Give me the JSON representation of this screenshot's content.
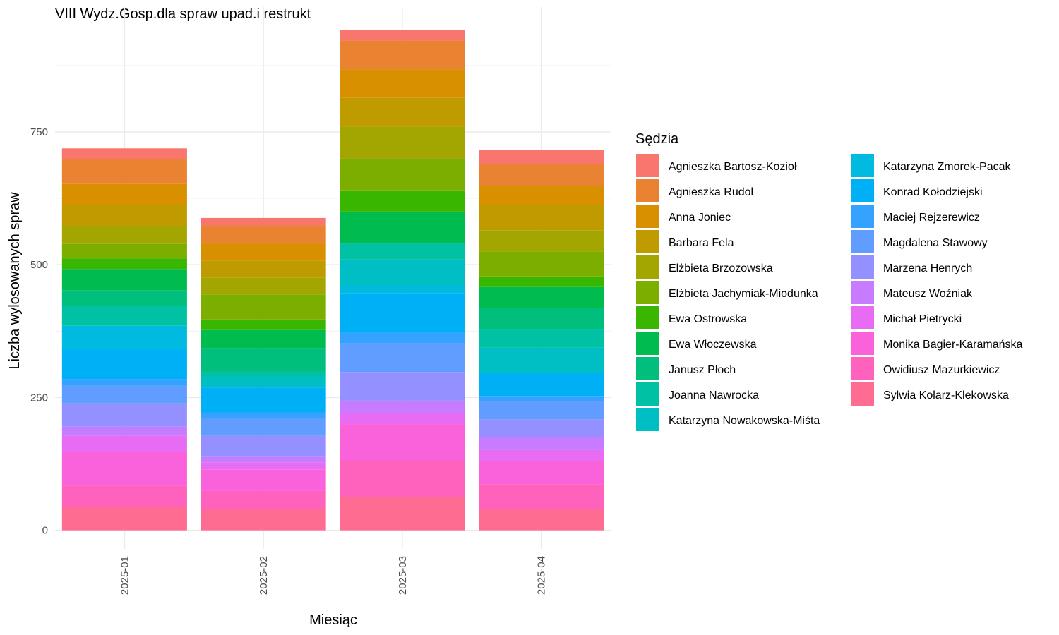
{
  "chart_data": {
    "type": "bar",
    "stacked": true,
    "title": "VIII Wydz.Gosp.dla spraw upad.i restrukt",
    "xlabel": "Miesiąc",
    "ylabel": "Liczba wylosowanych spraw",
    "ylim": [
      -35,
      985
    ],
    "yticks": [
      0,
      250,
      500,
      750
    ],
    "yticks_labels": [
      "0",
      "250",
      "500",
      "750"
    ],
    "grid": true,
    "legend_title": "Sędzia",
    "legend_position": "right",
    "categories": [
      "2025-01",
      "2025-02",
      "2025-03",
      "2025-04"
    ],
    "series": [
      {
        "name": "Agnieszka Bartosz-Kozioł",
        "color": "#F8766D",
        "values": [
          20,
          14,
          20,
          27
        ]
      },
      {
        "name": "Agnieszka Rudol",
        "color": "#EA8331",
        "values": [
          47,
          34,
          54,
          40
        ]
      },
      {
        "name": "Anna Joniec",
        "color": "#D89000",
        "values": [
          40,
          32,
          54,
          37
        ]
      },
      {
        "name": "Barbara Fela",
        "color": "#C09B00",
        "values": [
          40,
          32,
          54,
          47
        ]
      },
      {
        "name": "Elżbieta Brzozowska",
        "color": "#A3A500",
        "values": [
          33,
          32,
          60,
          40
        ]
      },
      {
        "name": "Elżbieta Jachymiak-Miodunka",
        "color": "#7CAE00",
        "values": [
          27,
          47,
          60,
          47
        ]
      },
      {
        "name": "Ewa Ostrowska",
        "color": "#39B600",
        "values": [
          20,
          20,
          40,
          20
        ]
      },
      {
        "name": "Ewa Włoczewska",
        "color": "#00BB4E",
        "values": [
          40,
          34,
          60,
          40
        ]
      },
      {
        "name": "Janusz Płoch",
        "color": "#00BF7D",
        "values": [
          30,
          44,
          0,
          40
        ]
      },
      {
        "name": "Joanna Nawrocka",
        "color": "#00C1A3",
        "values": [
          37,
          10,
          30,
          34
        ]
      },
      {
        "name": "Katarzyna Nowakowska-Miśta",
        "color": "#00BFC4",
        "values": [
          0,
          20,
          50,
          47
        ]
      },
      {
        "name": "Katarzyna Zmorek-Pacak",
        "color": "#00BAE0",
        "values": [
          43,
          0,
          14,
          0
        ]
      },
      {
        "name": "Konrad Kołodziejski",
        "color": "#00B0F6",
        "values": [
          57,
          47,
          74,
          44
        ]
      },
      {
        "name": "Maciej Rejzerewicz",
        "color": "#35A2FF",
        "values": [
          13,
          10,
          20,
          10
        ]
      },
      {
        "name": "Magdalena Stawowy",
        "color": "#619CFF",
        "values": [
          33,
          34,
          54,
          34
        ]
      },
      {
        "name": "Marzena Henrych",
        "color": "#9590FF",
        "values": [
          44,
          40,
          54,
          34
        ]
      },
      {
        "name": "Mateusz Woźniak",
        "color": "#C77CFF",
        "values": [
          17,
          10,
          24,
          24
        ]
      },
      {
        "name": "Michał Pietrycki",
        "color": "#E76BF3",
        "values": [
          30,
          14,
          20,
          20
        ]
      },
      {
        "name": "Monika Bagier-Karamańska",
        "color": "#FA62DB",
        "values": [
          64,
          40,
          70,
          44
        ]
      },
      {
        "name": "Owidiusz Mazurkiewicz",
        "color": "#FF62BC",
        "values": [
          40,
          34,
          67,
          47
        ]
      },
      {
        "name": "Sylwia Kolarz-Klekowska",
        "color": "#FF6C91",
        "values": [
          44,
          40,
          63,
          40
        ]
      }
    ]
  }
}
